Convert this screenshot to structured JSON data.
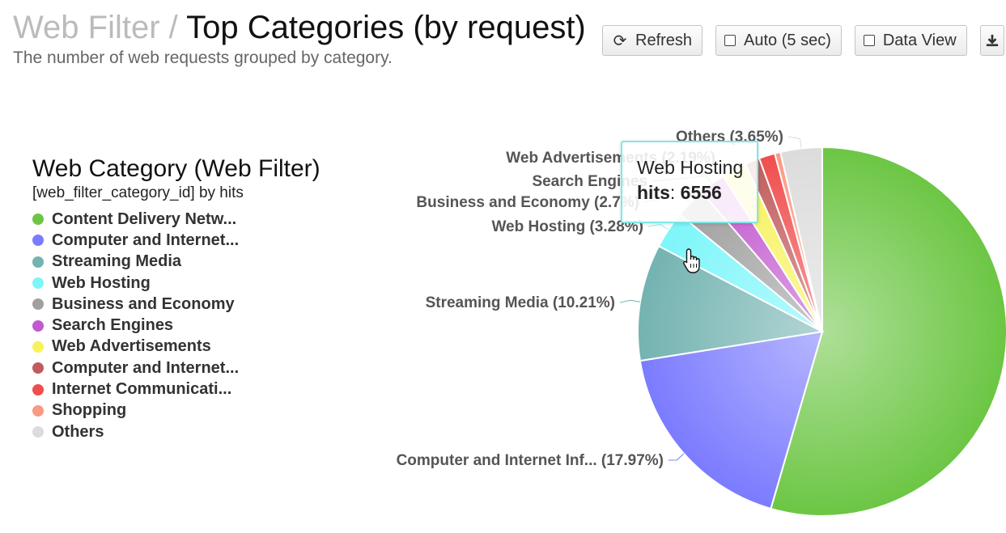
{
  "header": {
    "breadcrumb_parent": "Web Filter",
    "breadcrumb_sep": "/",
    "title": "Top Categories (by request)",
    "subtitle": "The number of web requests grouped by category."
  },
  "toolbar": {
    "refresh_label": "Refresh",
    "refresh_icon": "refresh-icon",
    "auto_label": "Auto (5 sec)",
    "data_view_label": "Data View",
    "download_icon": "download-icon"
  },
  "legend": {
    "title": "Web Category (Web Filter)",
    "subtitle": "[web_filter_category_id] by hits",
    "items": [
      {
        "label": "Content Delivery Netw...",
        "color": "#6cc644"
      },
      {
        "label": "Computer and Internet...",
        "color": "#7b7bff"
      },
      {
        "label": "Streaming Media",
        "color": "#73b3b1"
      },
      {
        "label": "Web Hosting",
        "color": "#7df6fa"
      },
      {
        "label": "Business and Economy",
        "color": "#a0a0a0"
      },
      {
        "label": "Search Engines",
        "color": "#c25acf"
      },
      {
        "label": "Web Advertisements",
        "color": "#f7f25a"
      },
      {
        "label": "Computer and Internet...",
        "color": "#c25c5c"
      },
      {
        "label": "Internet Communicati...",
        "color": "#f04e4e"
      },
      {
        "label": "Shopping",
        "color": "#f99a83"
      },
      {
        "label": "Others",
        "color": "#dcdcdc"
      }
    ]
  },
  "chart_data": {
    "type": "pie",
    "slices": [
      {
        "name": "Content Delivery Netw...",
        "percent": 54.5,
        "color": "#6cc644",
        "label": ""
      },
      {
        "name": "Computer and Internet...",
        "percent": 17.97,
        "color": "#7b7bff",
        "label": "Computer and Internet Inf... (17.97%)"
      },
      {
        "name": "Streaming Media",
        "percent": 10.21,
        "color": "#73b3b1",
        "label": "Streaming Media (10.21%)"
      },
      {
        "name": "Web Hosting",
        "percent": 3.28,
        "color": "#7df6fa",
        "label": "Web Hosting (3.28%)"
      },
      {
        "name": "Business and Economy",
        "percent": 2.7,
        "color": "#a0a0a0",
        "label": "Business and Economy (2.7%)"
      },
      {
        "name": "Search Engines",
        "percent": 2.3,
        "color": "#c25acf",
        "label": "Search Engines"
      },
      {
        "name": "Web Advertisements",
        "percent": 2.19,
        "color": "#f7f25a",
        "label": "Web Advertisements (2.19%)"
      },
      {
        "name": "Computer and Internet...",
        "percent": 1.3,
        "color": "#c25c5c",
        "label": ""
      },
      {
        "name": "Internet Communicati...",
        "percent": 1.4,
        "color": "#f04e4e",
        "label": ""
      },
      {
        "name": "Shopping",
        "percent": 0.5,
        "color": "#f99a83",
        "label": ""
      },
      {
        "name": "Others",
        "percent": 3.65,
        "color": "#dcdcdc",
        "label": "Others (3.65%)"
      }
    ]
  },
  "tooltip": {
    "name": "Web Hosting",
    "key": "hits",
    "value": "6556"
  }
}
